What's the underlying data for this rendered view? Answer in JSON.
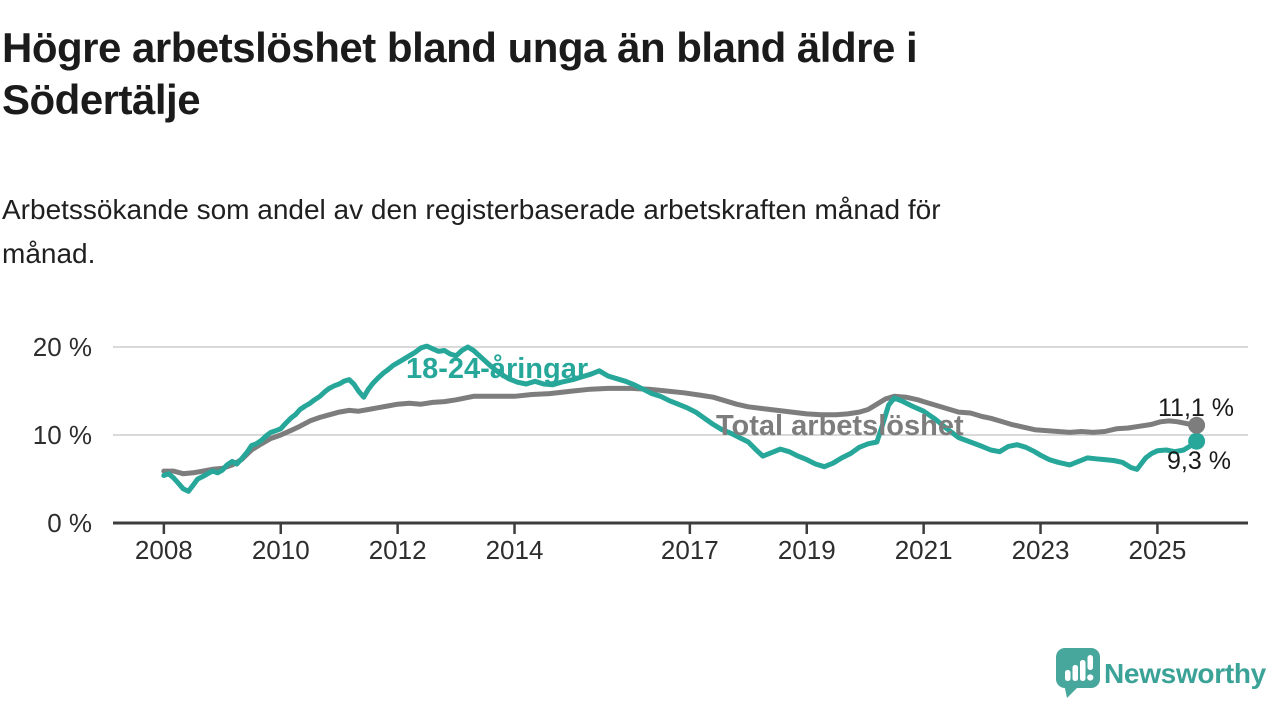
{
  "header": {
    "title": "Högre arbetslöshet bland unga än bland äldre i Södertälje",
    "title_lines": [
      "Högre arbetslöshet bland unga än bland äldre i",
      "Södertälje"
    ],
    "subtitle_lines": [
      "Arbetssökande som andel av den registerbaserade arbetskraften månad för",
      "månad."
    ]
  },
  "footer": {
    "brand": "Newsworthy"
  },
  "colors": {
    "teal": "#27a79a",
    "gray": "#7d7d7d",
    "axis": "#3d3d3d",
    "grid": "#d9d9d9",
    "value_label": "#1a1a1a",
    "brand_icon": "#48a79c",
    "brand_text": "#3aa296",
    "logo_inner": "#ffffff"
  },
  "chart_data": {
    "type": "line",
    "title": "Högre arbetslöshet bland unga än bland äldre i Södertälje",
    "subtitle": "Arbetssökande som andel av den registerbaserade arbetskraften månad för månad.",
    "xlabel": "",
    "ylabel": "",
    "unit": "%",
    "grid": "horizontal",
    "legend_position": "inline-on-line",
    "x_domain": [
      2007.13,
      2026.55
    ],
    "y_domain": [
      0,
      22
    ],
    "x_ticks": [
      2008,
      2010,
      2012,
      2014,
      2017,
      2019,
      2021,
      2023,
      2025
    ],
    "y_ticks": [
      {
        "value": 0,
        "label": "0 %"
      },
      {
        "value": 10,
        "label": "10 %"
      },
      {
        "value": 20,
        "label": "20 %"
      }
    ],
    "series": [
      {
        "name": "Total arbetslöshet",
        "color": "#7d7d7d",
        "end_label": "11,1 %",
        "end_value": 11.1,
        "points": [
          [
            2008.0,
            5.9
          ],
          [
            2008.17,
            5.9
          ],
          [
            2008.33,
            5.6
          ],
          [
            2008.5,
            5.7
          ],
          [
            2008.67,
            5.9
          ],
          [
            2008.83,
            6.1
          ],
          [
            2009.0,
            6.2
          ],
          [
            2009.17,
            6.6
          ],
          [
            2009.33,
            7.2
          ],
          [
            2009.5,
            8.3
          ],
          [
            2009.67,
            9.0
          ],
          [
            2009.83,
            9.6
          ],
          [
            2010.0,
            10.0
          ],
          [
            2010.17,
            10.5
          ],
          [
            2010.33,
            11.0
          ],
          [
            2010.5,
            11.6
          ],
          [
            2010.67,
            12.0
          ],
          [
            2010.83,
            12.3
          ],
          [
            2011.0,
            12.6
          ],
          [
            2011.17,
            12.8
          ],
          [
            2011.33,
            12.7
          ],
          [
            2011.5,
            12.9
          ],
          [
            2011.67,
            13.1
          ],
          [
            2011.83,
            13.3
          ],
          [
            2012.0,
            13.5
          ],
          [
            2012.2,
            13.6
          ],
          [
            2012.4,
            13.5
          ],
          [
            2012.6,
            13.7
          ],
          [
            2012.8,
            13.8
          ],
          [
            2013.0,
            14.0
          ],
          [
            2013.3,
            14.4
          ],
          [
            2013.6,
            14.4
          ],
          [
            2014.0,
            14.4
          ],
          [
            2014.3,
            14.6
          ],
          [
            2014.6,
            14.7
          ],
          [
            2015.0,
            15.0
          ],
          [
            2015.3,
            15.2
          ],
          [
            2015.6,
            15.3
          ],
          [
            2016.0,
            15.3
          ],
          [
            2016.3,
            15.2
          ],
          [
            2016.6,
            15.0
          ],
          [
            2016.9,
            14.8
          ],
          [
            2017.2,
            14.5
          ],
          [
            2017.4,
            14.3
          ],
          [
            2017.6,
            13.9
          ],
          [
            2017.8,
            13.5
          ],
          [
            2018.0,
            13.2
          ],
          [
            2018.25,
            13.0
          ],
          [
            2018.5,
            12.8
          ],
          [
            2018.75,
            12.6
          ],
          [
            2019.0,
            12.4
          ],
          [
            2019.25,
            12.3
          ],
          [
            2019.5,
            12.3
          ],
          [
            2019.7,
            12.4
          ],
          [
            2019.9,
            12.6
          ],
          [
            2020.05,
            12.9
          ],
          [
            2020.2,
            13.5
          ],
          [
            2020.35,
            14.1
          ],
          [
            2020.5,
            14.4
          ],
          [
            2020.7,
            14.3
          ],
          [
            2020.9,
            14.0
          ],
          [
            2021.0,
            13.8
          ],
          [
            2021.2,
            13.4
          ],
          [
            2021.4,
            13.0
          ],
          [
            2021.6,
            12.6
          ],
          [
            2021.8,
            12.5
          ],
          [
            2022.0,
            12.1
          ],
          [
            2022.15,
            11.9
          ],
          [
            2022.3,
            11.6
          ],
          [
            2022.5,
            11.2
          ],
          [
            2022.7,
            10.9
          ],
          [
            2022.9,
            10.6
          ],
          [
            2023.1,
            10.5
          ],
          [
            2023.3,
            10.4
          ],
          [
            2023.5,
            10.3
          ],
          [
            2023.7,
            10.4
          ],
          [
            2023.9,
            10.3
          ],
          [
            2024.1,
            10.4
          ],
          [
            2024.3,
            10.7
          ],
          [
            2024.5,
            10.8
          ],
          [
            2024.7,
            11.0
          ],
          [
            2024.9,
            11.2
          ],
          [
            2025.05,
            11.5
          ],
          [
            2025.2,
            11.6
          ],
          [
            2025.35,
            11.5
          ],
          [
            2025.5,
            11.3
          ],
          [
            2025.67,
            11.1
          ]
        ]
      },
      {
        "name": "18-24-åringar",
        "color": "#27a79a",
        "end_label": "9,3 %",
        "end_value": 9.3,
        "points": [
          [
            2008.0,
            5.4
          ],
          [
            2008.08,
            5.6
          ],
          [
            2008.17,
            5.1
          ],
          [
            2008.25,
            4.5
          ],
          [
            2008.33,
            3.9
          ],
          [
            2008.42,
            3.6
          ],
          [
            2008.5,
            4.3
          ],
          [
            2008.58,
            5.0
          ],
          [
            2008.67,
            5.3
          ],
          [
            2008.75,
            5.6
          ],
          [
            2008.83,
            5.9
          ],
          [
            2008.92,
            5.7
          ],
          [
            2009.0,
            6.0
          ],
          [
            2009.08,
            6.6
          ],
          [
            2009.17,
            7.0
          ],
          [
            2009.25,
            6.7
          ],
          [
            2009.33,
            7.3
          ],
          [
            2009.42,
            8.0
          ],
          [
            2009.5,
            8.8
          ],
          [
            2009.58,
            9.0
          ],
          [
            2009.67,
            9.4
          ],
          [
            2009.75,
            9.9
          ],
          [
            2009.83,
            10.3
          ],
          [
            2009.92,
            10.5
          ],
          [
            2010.0,
            10.7
          ],
          [
            2010.08,
            11.3
          ],
          [
            2010.17,
            11.9
          ],
          [
            2010.25,
            12.3
          ],
          [
            2010.33,
            12.9
          ],
          [
            2010.42,
            13.3
          ],
          [
            2010.5,
            13.6
          ],
          [
            2010.58,
            14.0
          ],
          [
            2010.67,
            14.4
          ],
          [
            2010.75,
            14.9
          ],
          [
            2010.83,
            15.3
          ],
          [
            2010.92,
            15.6
          ],
          [
            2011.0,
            15.8
          ],
          [
            2011.08,
            16.1
          ],
          [
            2011.17,
            16.3
          ],
          [
            2011.25,
            15.8
          ],
          [
            2011.33,
            15.0
          ],
          [
            2011.42,
            14.3
          ],
          [
            2011.5,
            15.2
          ],
          [
            2011.58,
            15.9
          ],
          [
            2011.67,
            16.5
          ],
          [
            2011.75,
            17.0
          ],
          [
            2011.83,
            17.4
          ],
          [
            2011.92,
            17.9
          ],
          [
            2012.0,
            18.2
          ],
          [
            2012.1,
            18.6
          ],
          [
            2012.2,
            19.0
          ],
          [
            2012.3,
            19.4
          ],
          [
            2012.4,
            19.9
          ],
          [
            2012.5,
            20.1
          ],
          [
            2012.6,
            19.8
          ],
          [
            2012.7,
            19.5
          ],
          [
            2012.8,
            19.6
          ],
          [
            2012.9,
            19.2
          ],
          [
            2013.0,
            19.0
          ],
          [
            2013.1,
            19.6
          ],
          [
            2013.2,
            20.0
          ],
          [
            2013.3,
            19.6
          ],
          [
            2013.4,
            19.0
          ],
          [
            2013.5,
            18.4
          ],
          [
            2013.6,
            17.8
          ],
          [
            2013.75,
            17.0
          ],
          [
            2013.9,
            16.4
          ],
          [
            2014.05,
            16.0
          ],
          [
            2014.2,
            15.8
          ],
          [
            2014.35,
            16.1
          ],
          [
            2014.5,
            15.8
          ],
          [
            2014.65,
            15.7
          ],
          [
            2014.8,
            16.0
          ],
          [
            2015.0,
            16.3
          ],
          [
            2015.15,
            16.6
          ],
          [
            2015.3,
            16.9
          ],
          [
            2015.45,
            17.3
          ],
          [
            2015.6,
            16.7
          ],
          [
            2015.75,
            16.4
          ],
          [
            2015.9,
            16.1
          ],
          [
            2016.05,
            15.7
          ],
          [
            2016.2,
            15.2
          ],
          [
            2016.35,
            14.7
          ],
          [
            2016.5,
            14.4
          ],
          [
            2016.65,
            13.9
          ],
          [
            2016.8,
            13.5
          ],
          [
            2016.95,
            13.1
          ],
          [
            2017.1,
            12.6
          ],
          [
            2017.25,
            11.9
          ],
          [
            2017.4,
            11.2
          ],
          [
            2017.55,
            10.6
          ],
          [
            2017.7,
            10.2
          ],
          [
            2017.85,
            9.7
          ],
          [
            2018.0,
            9.2
          ],
          [
            2018.15,
            8.2
          ],
          [
            2018.25,
            7.6
          ],
          [
            2018.4,
            8.0
          ],
          [
            2018.55,
            8.4
          ],
          [
            2018.7,
            8.1
          ],
          [
            2018.85,
            7.6
          ],
          [
            2019.0,
            7.2
          ],
          [
            2019.15,
            6.7
          ],
          [
            2019.3,
            6.4
          ],
          [
            2019.45,
            6.8
          ],
          [
            2019.6,
            7.4
          ],
          [
            2019.75,
            7.9
          ],
          [
            2019.9,
            8.6
          ],
          [
            2020.05,
            9.0
          ],
          [
            2020.2,
            9.2
          ],
          [
            2020.3,
            11.2
          ],
          [
            2020.4,
            13.4
          ],
          [
            2020.5,
            14.2
          ],
          [
            2020.65,
            13.8
          ],
          [
            2020.8,
            13.3
          ],
          [
            2021.0,
            12.7
          ],
          [
            2021.2,
            11.8
          ],
          [
            2021.4,
            10.7
          ],
          [
            2021.6,
            9.7
          ],
          [
            2021.8,
            9.2
          ],
          [
            2022.0,
            8.7
          ],
          [
            2022.15,
            8.3
          ],
          [
            2022.3,
            8.1
          ],
          [
            2022.45,
            8.7
          ],
          [
            2022.6,
            8.9
          ],
          [
            2022.75,
            8.6
          ],
          [
            2022.9,
            8.1
          ],
          [
            2023.0,
            7.7
          ],
          [
            2023.15,
            7.2
          ],
          [
            2023.3,
            6.9
          ],
          [
            2023.5,
            6.6
          ],
          [
            2023.65,
            7.0
          ],
          [
            2023.8,
            7.4
          ],
          [
            2023.95,
            7.3
          ],
          [
            2024.1,
            7.2
          ],
          [
            2024.25,
            7.1
          ],
          [
            2024.4,
            6.9
          ],
          [
            2024.55,
            6.3
          ],
          [
            2024.65,
            6.1
          ],
          [
            2024.8,
            7.4
          ],
          [
            2024.9,
            7.9
          ],
          [
            2025.0,
            8.2
          ],
          [
            2025.15,
            8.3
          ],
          [
            2025.3,
            8.1
          ],
          [
            2025.45,
            8.3
          ],
          [
            2025.55,
            8.7
          ],
          [
            2025.67,
            9.3
          ]
        ]
      }
    ]
  }
}
